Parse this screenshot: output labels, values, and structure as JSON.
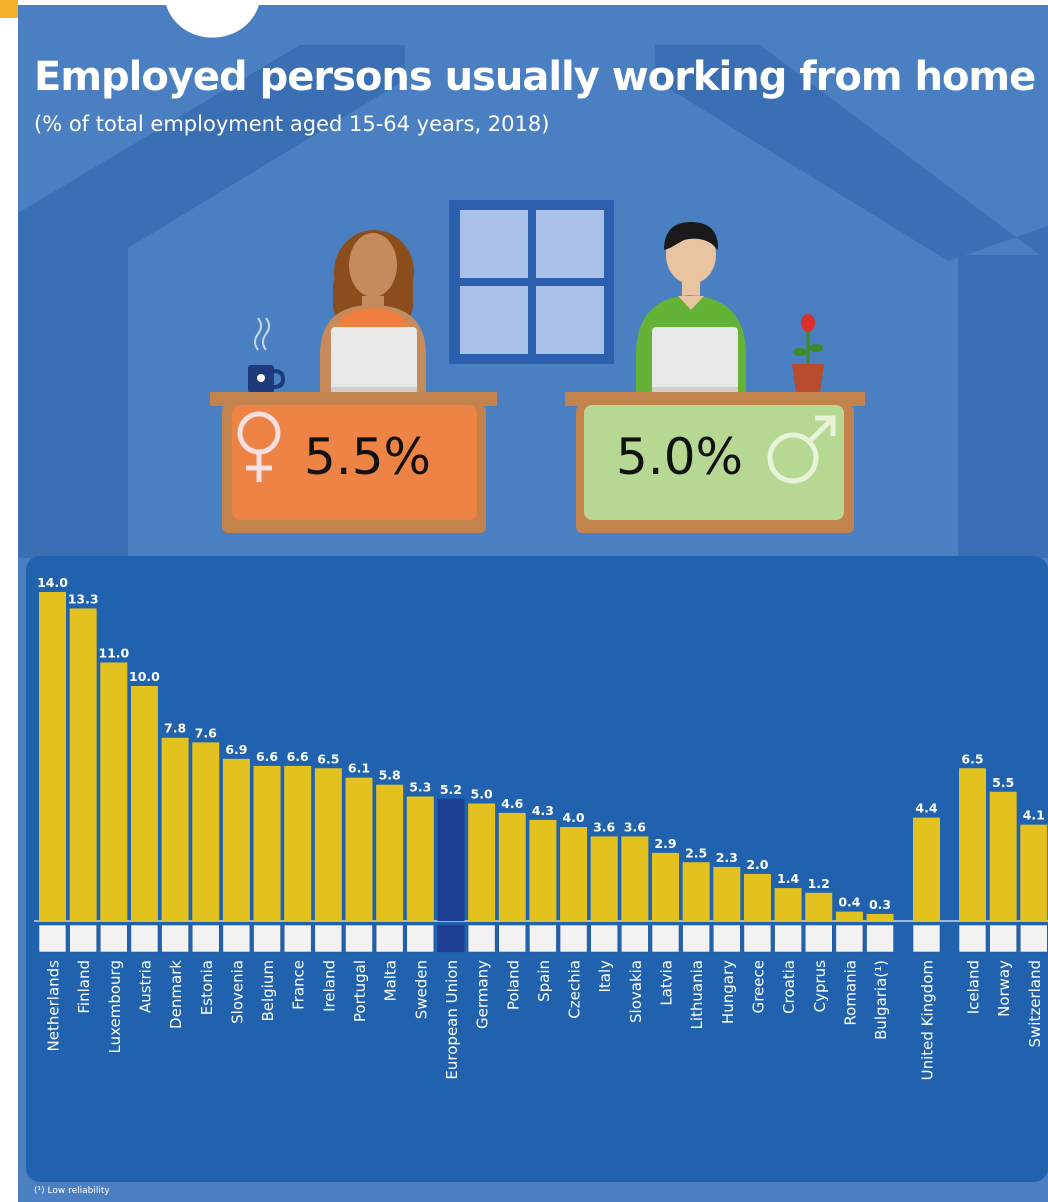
{
  "title": "Employed persons usually working from home",
  "subtitle": "(% of total employment aged 15-64 years, 2018)",
  "female_share": "5.5%",
  "male_share": "5.0%",
  "footnote": "(¹) Low reliability",
  "colors": {
    "background": "#4a7fc1",
    "chart_panel": "#2062ad",
    "bar": "#e3c21f",
    "bar_eu": "#1c3f93",
    "female_desk": "#ed8345",
    "male_desk": "#b7d892",
    "desk_wood": "#c3834d"
  },
  "icons": [
    "female-symbol-icon",
    "male-symbol-icon",
    "coffee-mug-icon",
    "flower-pot-icon",
    "laptop-icon",
    "window-icon",
    "house-roof-icon"
  ],
  "chart_data": {
    "type": "bar",
    "title": "Employed persons usually working from home",
    "subtitle": "(% of total employment aged 15-64 years, 2018)",
    "xlabel": "",
    "ylabel": "",
    "ylim": [
      0,
      14
    ],
    "grid": false,
    "legend": "none",
    "categories": [
      "Netherlands",
      "Finland",
      "Luxembourg",
      "Austria",
      "Denmark",
      "Estonia",
      "Slovenia",
      "Belgium",
      "France",
      "Ireland",
      "Portugal",
      "Malta",
      "Sweden",
      "European Union",
      "Germany",
      "Poland",
      "Spain",
      "Czechia",
      "Italy",
      "Slovakia",
      "Latvia",
      "Lithuania",
      "Hungary",
      "Greece",
      "Croatia",
      "Cyprus",
      "Romania",
      "Bulgaria(¹)",
      "United Kingdom",
      "Iceland",
      "Norway",
      "Switzerland"
    ],
    "values": [
      14.0,
      13.3,
      11.0,
      10.0,
      7.8,
      7.6,
      6.9,
      6.6,
      6.6,
      6.5,
      6.1,
      5.8,
      5.3,
      5.2,
      5.0,
      4.6,
      4.3,
      4.0,
      3.6,
      3.6,
      2.9,
      2.5,
      2.3,
      2.0,
      1.4,
      1.2,
      0.4,
      0.3,
      4.4,
      6.5,
      5.5,
      4.1
    ],
    "value_labels": [
      "14.0",
      "13.3",
      "11.0",
      "10.0",
      "7.8",
      "7.6",
      "6.9",
      "6.6",
      "6.6",
      "6.5",
      "6.1",
      "5.8",
      "5.3",
      "5.2",
      "5.0",
      "4.6",
      "4.3",
      "4.0",
      "3.6",
      "3.6",
      "2.9",
      "2.5",
      "2.3",
      "2.0",
      "1.4",
      "1.2",
      "0.4",
      "0.3",
      "4.4",
      "6.5",
      "5.5",
      "4.1"
    ],
    "highlight": "European Union"
  }
}
